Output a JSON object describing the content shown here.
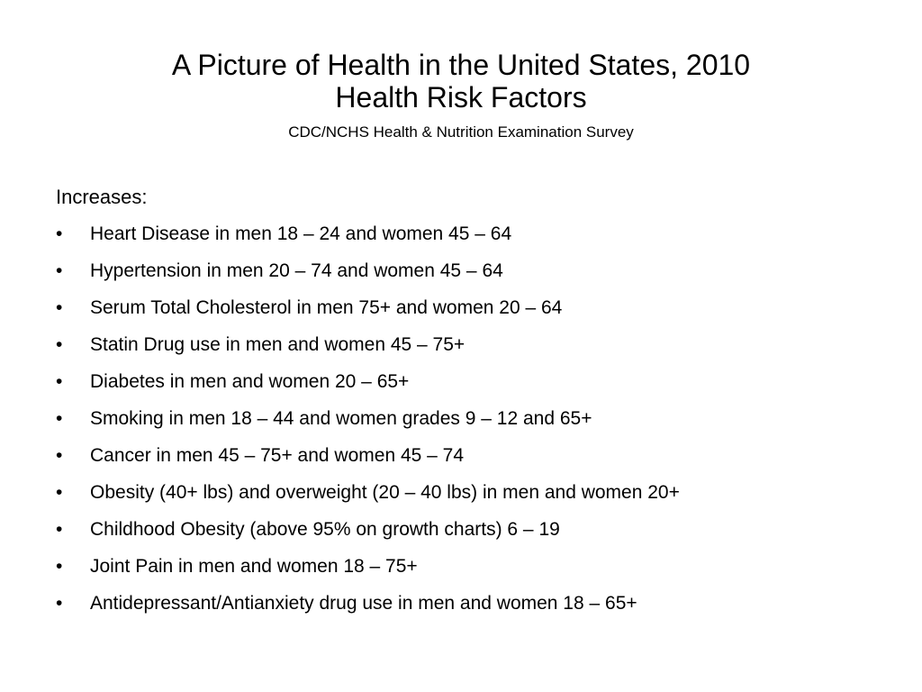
{
  "slide": {
    "title_line1": "A Picture of Health in the United States, 2010",
    "title_line2": "Health Risk Factors",
    "subtitle": "CDC/NCHS Health & Nutrition Examination Survey",
    "section_heading": "Increases:",
    "bullet_symbol": "•",
    "bullets": [
      "Heart Disease in men 18 – 24 and women 45 – 64",
      "Hypertension in men 20 – 74 and women 45 – 64",
      "Serum Total Cholesterol in men 75+ and women 20 – 64",
      "Statin Drug use in men and women 45 – 75+",
      "Diabetes in men and women 20 – 65+",
      "Smoking in men 18 – 44 and women grades 9 – 12 and 65+",
      "Cancer in men 45 – 75+ and women 45 – 74",
      "Obesity (40+ lbs) and overweight (20 – 40 lbs) in men and women 20+",
      "Childhood Obesity (above 95% on growth charts) 6 – 19",
      "Joint Pain in men and women 18 – 75+",
      "Antidepressant/Antianxiety drug use in men and women 18 – 65+"
    ]
  }
}
